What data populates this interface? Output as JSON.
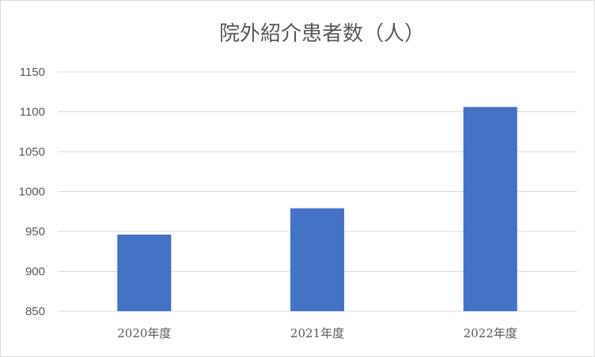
{
  "chart_data": {
    "type": "bar",
    "title": "院外紹介患者数（人）",
    "categories": [
      "2020年度",
      "2021年度",
      "2022年度"
    ],
    "values": [
      946,
      979,
      1106
    ],
    "ylim": [
      850,
      1150
    ],
    "yticks": [
      850,
      900,
      950,
      1000,
      1050,
      1100,
      1150
    ],
    "grid": true,
    "legend": "none",
    "bar_color": "#4472c4",
    "grid_color": "#d9d9d9",
    "text_color": "#595959"
  }
}
